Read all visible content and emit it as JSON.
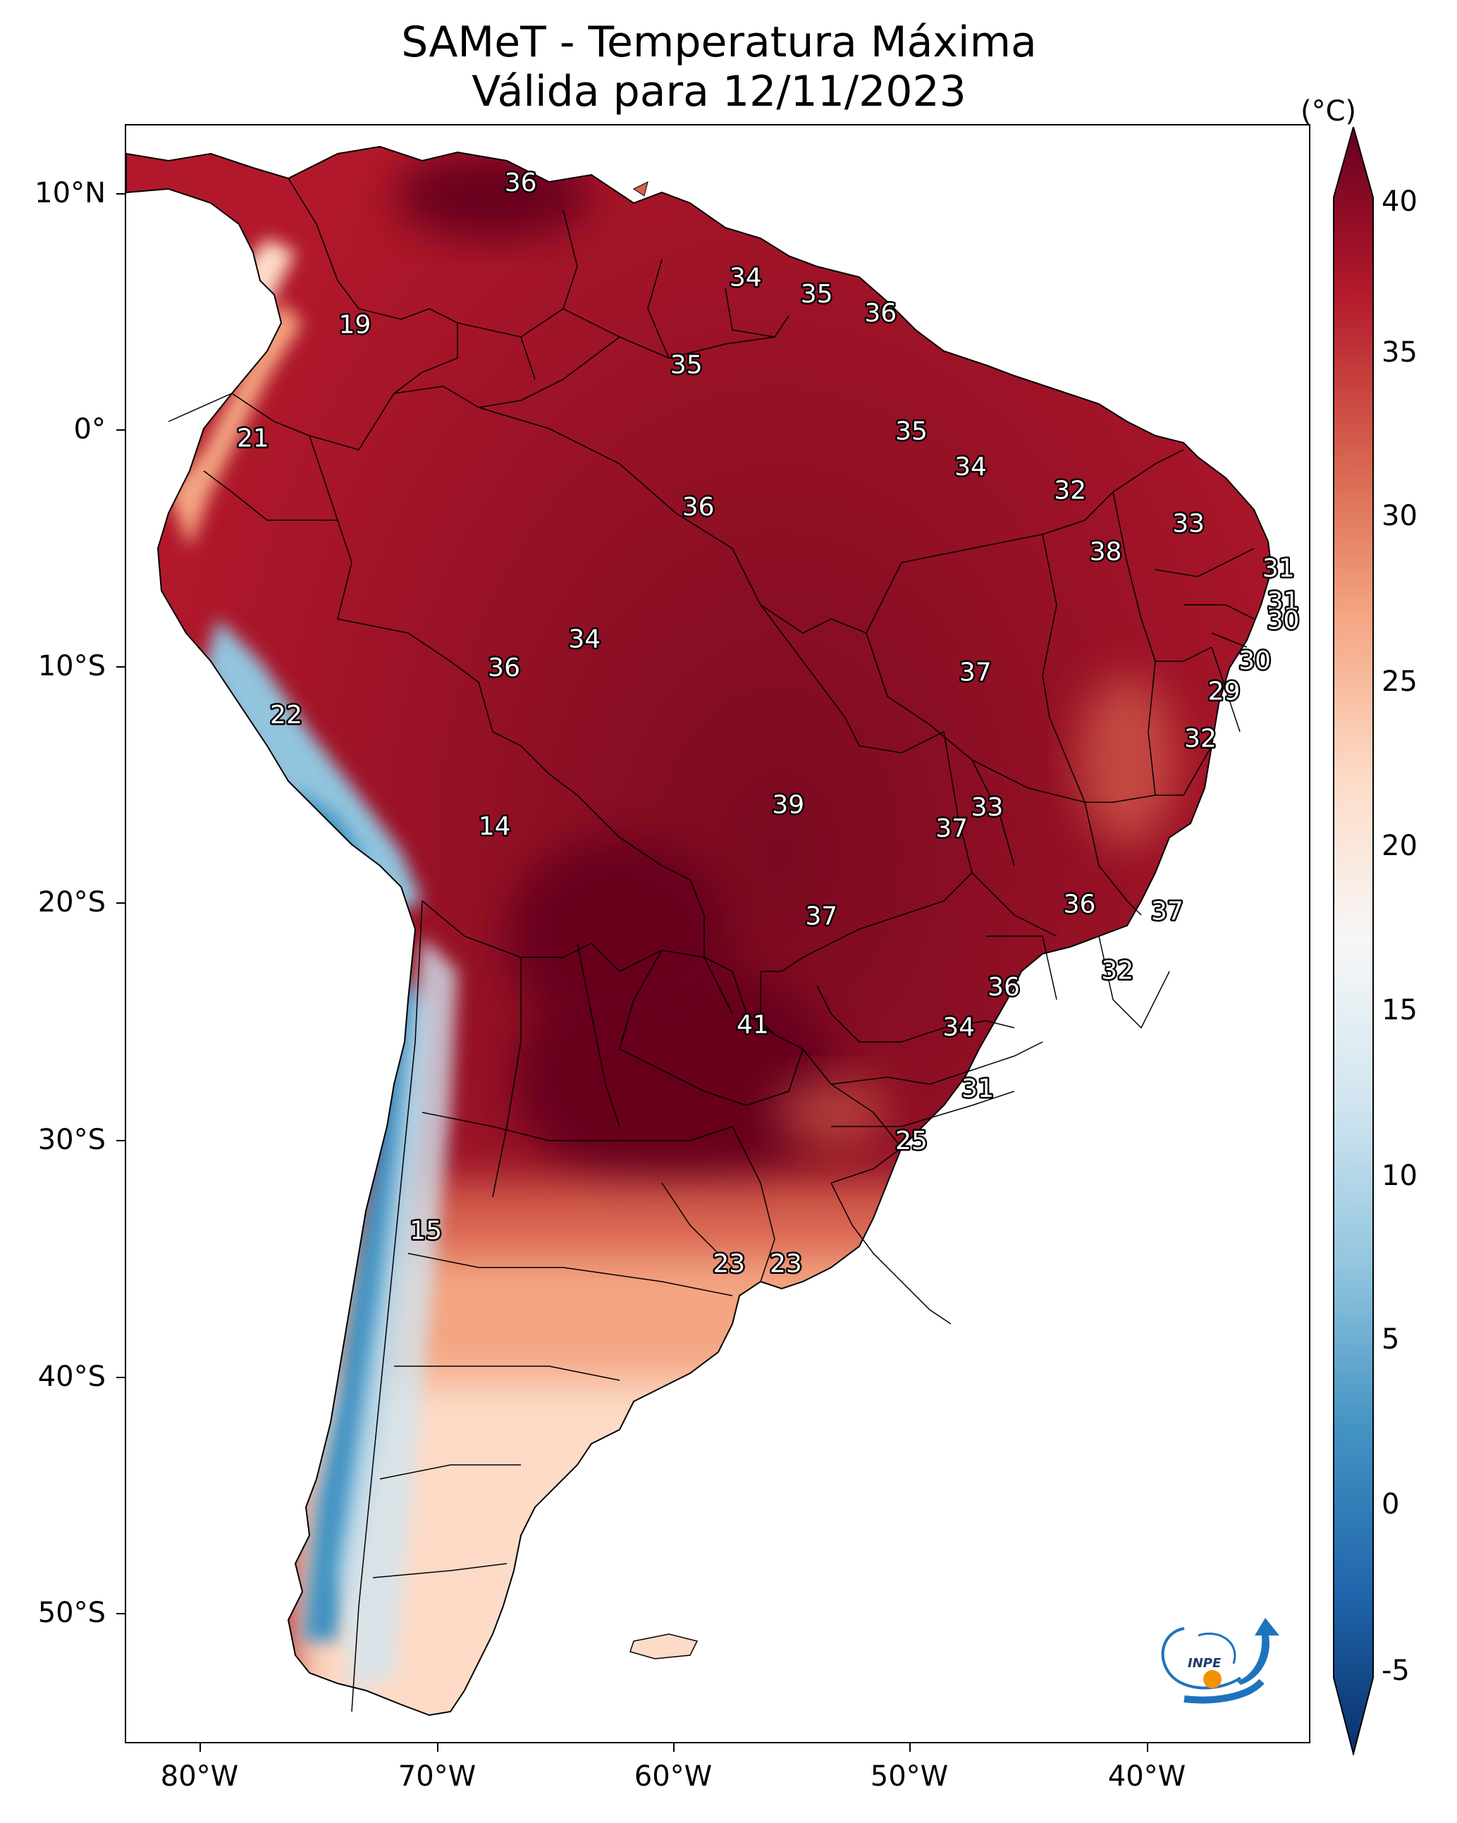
{
  "title": {
    "line1": "SAMeT - Temperatura Máxima",
    "line2": "Válida para 12/11/2023"
  },
  "colorbar": {
    "unit": "(°C)",
    "ticks": [
      "40",
      "35",
      "30",
      "25",
      "20",
      "15",
      "10",
      "5",
      "0",
      "-5"
    ],
    "min": -5,
    "max": 40,
    "colors": [
      "#08306b",
      "#2166ac",
      "#4393c3",
      "#92c5de",
      "#d1e5f0",
      "#f7f7f7",
      "#fddbc7",
      "#f4a582",
      "#d6604d",
      "#b2182b",
      "#67001f"
    ]
  },
  "axes": {
    "lat_ticks": [
      "10°N",
      "0°",
      "10°S",
      "20°S",
      "30°S",
      "40°S",
      "50°S"
    ],
    "lon_ticks": [
      "80°W",
      "70°W",
      "60°W",
      "50°W",
      "40°W"
    ]
  },
  "logo": {
    "text": "INPE"
  },
  "labels": [
    {
      "value": "36",
      "lon": -66.5,
      "lat": 10.5
    },
    {
      "value": "34",
      "lon": -57.0,
      "lat": 6.5
    },
    {
      "value": "35",
      "lon": -54.0,
      "lat": 5.8
    },
    {
      "value": "36",
      "lon": -51.3,
      "lat": 5.0
    },
    {
      "value": "19",
      "lon": -73.5,
      "lat": 4.5
    },
    {
      "value": "35",
      "lon": -59.5,
      "lat": 2.8
    },
    {
      "value": "35",
      "lon": -50.0,
      "lat": 0.0
    },
    {
      "value": "21",
      "lon": -77.8,
      "lat": -0.3
    },
    {
      "value": "34",
      "lon": -47.5,
      "lat": -1.5
    },
    {
      "value": "32",
      "lon": -43.3,
      "lat": -2.5
    },
    {
      "value": "36",
      "lon": -59.0,
      "lat": -3.2
    },
    {
      "value": "33",
      "lon": -38.3,
      "lat": -3.9
    },
    {
      "value": "38",
      "lon": -41.8,
      "lat": -5.1
    },
    {
      "value": "31",
      "lon": -34.5,
      "lat": -5.8
    },
    {
      "value": "31",
      "lon": -34.3,
      "lat": -7.2
    },
    {
      "value": "30",
      "lon": -34.3,
      "lat": -8.0
    },
    {
      "value": "34",
      "lon": -63.8,
      "lat": -8.8
    },
    {
      "value": "30",
      "lon": -35.5,
      "lat": -9.7
    },
    {
      "value": "36",
      "lon": -67.2,
      "lat": -10.0
    },
    {
      "value": "37",
      "lon": -47.3,
      "lat": -10.2
    },
    {
      "value": "29",
      "lon": -36.8,
      "lat": -11.0
    },
    {
      "value": "22",
      "lon": -76.4,
      "lat": -12.0
    },
    {
      "value": "32",
      "lon": -37.8,
      "lat": -13.0
    },
    {
      "value": "39",
      "lon": -55.2,
      "lat": -15.8
    },
    {
      "value": "33",
      "lon": -46.8,
      "lat": -15.9
    },
    {
      "value": "14",
      "lon": -67.6,
      "lat": -16.7
    },
    {
      "value": "37",
      "lon": -48.3,
      "lat": -16.8
    },
    {
      "value": "36",
      "lon": -42.9,
      "lat": -20.0
    },
    {
      "value": "37",
      "lon": -39.2,
      "lat": -20.3
    },
    {
      "value": "37",
      "lon": -53.8,
      "lat": -20.5
    },
    {
      "value": "32",
      "lon": -41.3,
      "lat": -22.8
    },
    {
      "value": "36",
      "lon": -46.1,
      "lat": -23.5
    },
    {
      "value": "41",
      "lon": -56.7,
      "lat": -25.1
    },
    {
      "value": "34",
      "lon": -48.0,
      "lat": -25.2
    },
    {
      "value": "31",
      "lon": -47.2,
      "lat": -27.8
    },
    {
      "value": "25",
      "lon": -50.0,
      "lat": -30.0
    },
    {
      "value": "15",
      "lon": -70.5,
      "lat": -33.8
    },
    {
      "value": "23",
      "lon": -57.7,
      "lat": -35.2
    },
    {
      "value": "23",
      "lon": -55.3,
      "lat": -35.2
    }
  ]
}
